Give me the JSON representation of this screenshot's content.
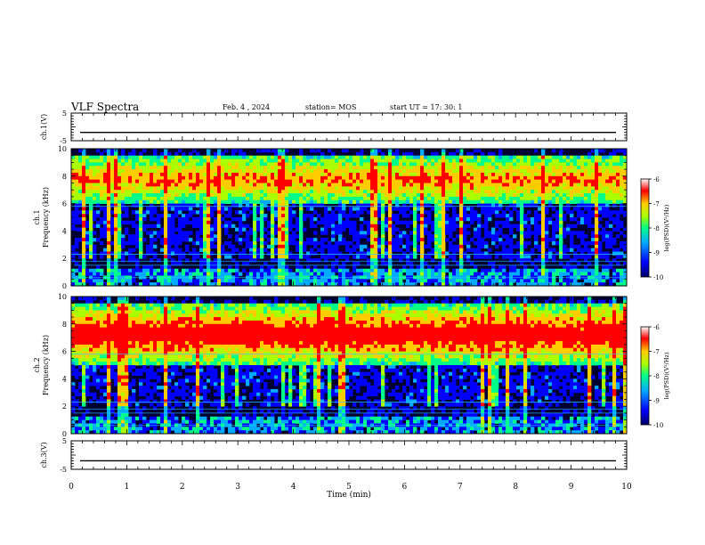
{
  "header": {
    "title": "VLF Spectra",
    "date": "Feb. 4 , 2024",
    "station": "station= MOS",
    "start": "start UT = 17: 30: 1"
  },
  "chart_data": [
    {
      "type": "line",
      "name_label": "ch.1(V)",
      "ylim": [
        -5,
        5
      ],
      "yticks": [
        "5",
        "-5"
      ],
      "xlim": [
        0,
        10
      ],
      "note": "near-constant trace around -2 V"
    },
    {
      "type": "heatmap",
      "panel_label": "ch.1",
      "ylabel": "Frequency (kHz)",
      "ylim": [
        0,
        10
      ],
      "yticks": [
        "0",
        "2",
        "4",
        "6",
        "8",
        "10"
      ],
      "xlim": [
        0,
        10
      ],
      "intense_band_khz": [
        6,
        9.5
      ],
      "colorbar": {
        "label": "log(PSD)(V²/Hz)",
        "ticks": [
          "-6",
          "-7",
          "-8",
          "-9",
          "-10"
        ],
        "range": [
          -10,
          -6
        ]
      }
    },
    {
      "type": "heatmap",
      "panel_label": "ch.2",
      "ylabel": "Frequency (kHz)",
      "ylim": [
        0,
        10
      ],
      "yticks": [
        "0",
        "2",
        "4",
        "6",
        "8",
        "10"
      ],
      "xlim": [
        0,
        10
      ],
      "intense_band_khz": [
        5,
        9.5
      ],
      "colorbar": {
        "label": "log(PSD)(V²/Hz)",
        "ticks": [
          "-6",
          "-7",
          "-8",
          "-9",
          "-10"
        ],
        "range": [
          -10,
          -6
        ]
      }
    },
    {
      "type": "line",
      "name_label": "ch.3(V)",
      "ylim": [
        -5,
        5
      ],
      "yticks": [
        "5",
        "-5"
      ],
      "xlim": [
        0,
        10
      ],
      "note": "near-constant trace around -2 V"
    }
  ],
  "x_axis": {
    "label": "Time (min)",
    "ticks": [
      "0",
      "1",
      "2",
      "3",
      "4",
      "5",
      "6",
      "7",
      "8",
      "9",
      "10"
    ]
  },
  "colors": {
    "background": "#000033",
    "colormap": [
      "#000066",
      "#0000ff",
      "#00aaff",
      "#00ff88",
      "#aaff00",
      "#ffcc00",
      "#ff0000",
      "#ffffff"
    ]
  }
}
